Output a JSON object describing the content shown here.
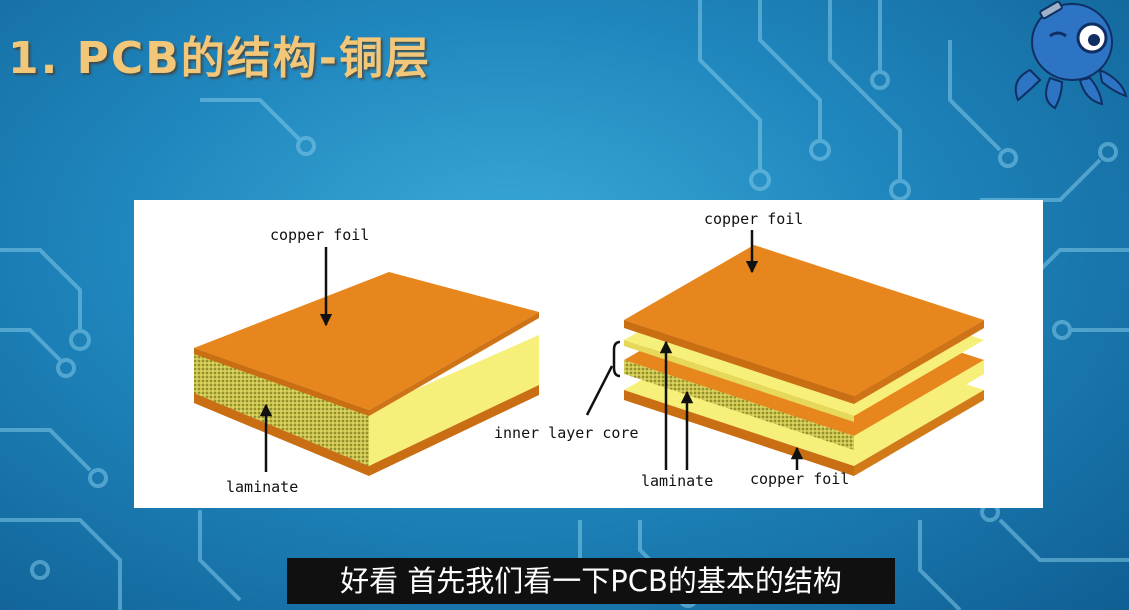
{
  "slide": {
    "title": "1. PCB的结构-铜层"
  },
  "figure": {
    "left_labels": {
      "top": "copper foil",
      "bottom": "laminate"
    },
    "right_labels": {
      "top": "copper foil",
      "core": "inner layer core",
      "laminate": "laminate",
      "bottom": "copper foil"
    },
    "colors": {
      "copper": "#e8861e",
      "laminate": "#f6ef7a",
      "panel": "#ffffff"
    }
  },
  "subtitle": {
    "text": "好看 首先我们看一下PCB的基本的结构"
  }
}
